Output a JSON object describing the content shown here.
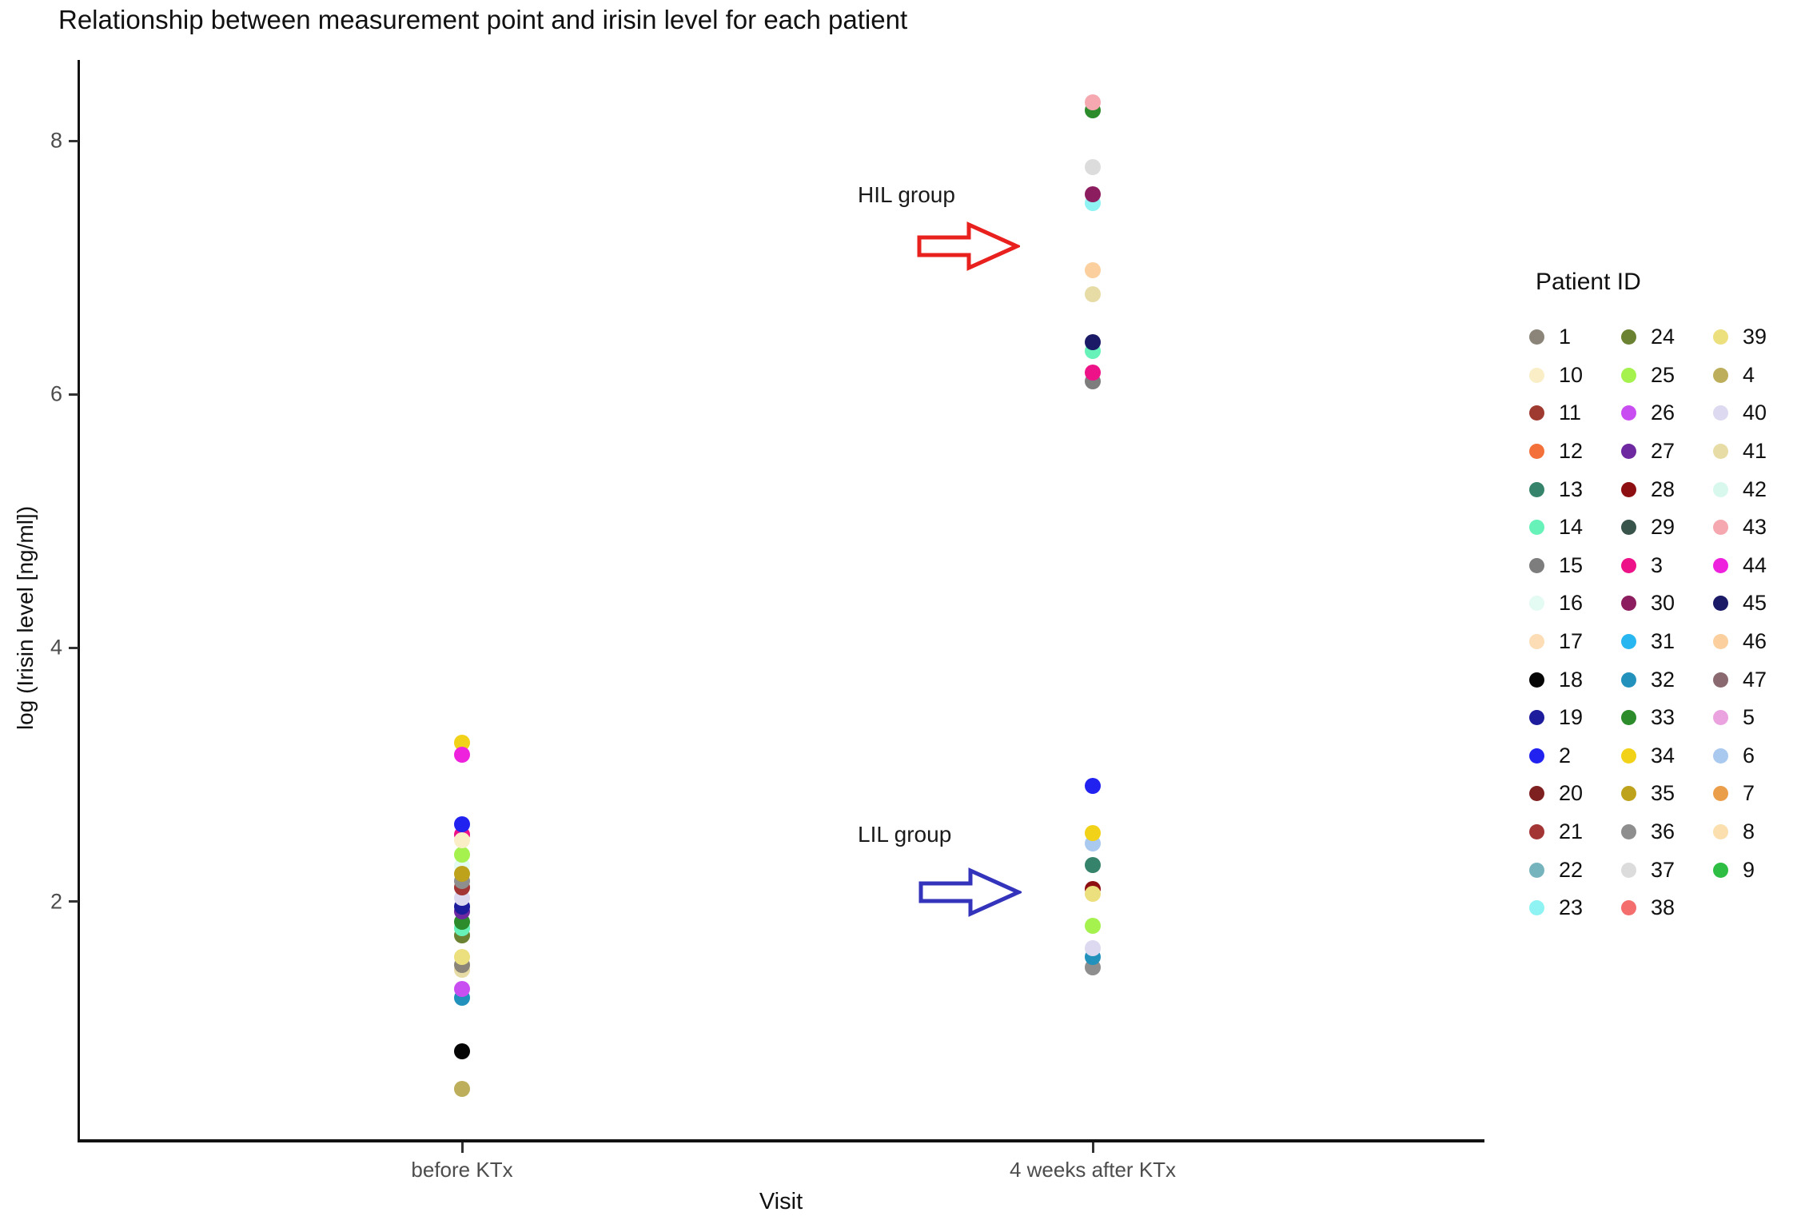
{
  "chart_data": {
    "type": "scatter",
    "title": "Relationship between measurement point and irisin level for each patient",
    "xlabel": "Visit",
    "ylabel": "log (Irisin level [ng/ml])",
    "x_categories": [
      "before KTx",
      "4 weeks after KTx"
    ],
    "y_ticks": [
      2,
      4,
      6,
      8
    ],
    "ylim": [
      0.1,
      8.6
    ],
    "grid": false,
    "legend_position": "right",
    "annotations": [
      {
        "label": "HIL group",
        "arrow_color": "#e8201e",
        "points_to": "high irisin level cluster at 4 weeks after KTx"
      },
      {
        "label": "LIL group",
        "arrow_color": "#3333bb",
        "points_to": "low irisin level cluster at 4 weeks after KTx"
      }
    ],
    "series": [
      {
        "name": "before KTx",
        "points": [
          {
            "id": "4",
            "v": 0.52
          },
          {
            "id": "18",
            "v": 0.82
          },
          {
            "id": "32",
            "v": 1.24
          },
          {
            "id": "26",
            "v": 1.31
          },
          {
            "id": "41",
            "v": 1.46
          },
          {
            "id": "1",
            "v": 1.5
          },
          {
            "id": "39",
            "v": 1.56
          },
          {
            "id": "24",
            "v": 1.73
          },
          {
            "id": "14",
            "v": 1.79
          },
          {
            "id": "33",
            "v": 1.84
          },
          {
            "id": "27",
            "v": 1.92
          },
          {
            "id": "19",
            "v": 1.96
          },
          {
            "id": "40",
            "v": 2.03
          },
          {
            "id": "21",
            "v": 2.11
          },
          {
            "id": "36",
            "v": 2.16
          },
          {
            "id": "16",
            "v": 2.28
          },
          {
            "id": "35",
            "v": 2.22
          },
          {
            "id": "25",
            "v": 2.37
          },
          {
            "id": "3",
            "v": 2.53
          },
          {
            "id": "10",
            "v": 2.48
          },
          {
            "id": "2",
            "v": 2.61
          },
          {
            "id": "34",
            "v": 3.25
          },
          {
            "id": "44",
            "v": 3.16
          }
        ]
      },
      {
        "name": "4 weeks after KTx",
        "points": [
          {
            "id": "36",
            "v": 1.48
          },
          {
            "id": "32",
            "v": 1.56
          },
          {
            "id": "40",
            "v": 1.63
          },
          {
            "id": "25",
            "v": 1.81
          },
          {
            "id": "28",
            "v": 2.1
          },
          {
            "id": "39",
            "v": 2.06
          },
          {
            "id": "13",
            "v": 2.29
          },
          {
            "id": "6",
            "v": 2.46
          },
          {
            "id": "34",
            "v": 2.54
          },
          {
            "id": "2",
            "v": 2.91
          },
          {
            "id": "15",
            "v": 6.1
          },
          {
            "id": "3",
            "v": 6.17
          },
          {
            "id": "14",
            "v": 6.34
          },
          {
            "id": "45",
            "v": 6.41
          },
          {
            "id": "41",
            "v": 6.79
          },
          {
            "id": "46",
            "v": 6.98
          },
          {
            "id": "23",
            "v": 7.51
          },
          {
            "id": "30",
            "v": 7.58
          },
          {
            "id": "37",
            "v": 7.79
          },
          {
            "id": "33",
            "v": 8.24
          },
          {
            "id": "43",
            "v": 8.3
          }
        ]
      }
    ]
  },
  "legend": {
    "title": "Patient ID",
    "order": [
      "1",
      "10",
      "11",
      "12",
      "13",
      "14",
      "15",
      "16",
      "17",
      "18",
      "19",
      "2",
      "20",
      "21",
      "22",
      "23",
      "24",
      "25",
      "26",
      "27",
      "28",
      "29",
      "3",
      "30",
      "31",
      "32",
      "33",
      "34",
      "35",
      "36",
      "37",
      "38",
      "39",
      "4",
      "40",
      "41",
      "42",
      "43",
      "44",
      "45",
      "46",
      "47",
      "5",
      "6",
      "7",
      "8",
      "9"
    ]
  },
  "palette": {
    "1": "#8a8578",
    "2": "#2222f0",
    "3": "#ee1289",
    "4": "#bcae5a",
    "5": "#eba3e0",
    "6": "#a9c9ee",
    "7": "#eb9e4a",
    "8": "#fbdfae",
    "9": "#2ebe44",
    "10": "#faeec7",
    "11": "#9e3a30",
    "12": "#f4703a",
    "13": "#35836a",
    "14": "#66f2b8",
    "15": "#7d7d7d",
    "16": "#e4fbf3",
    "17": "#fcddb5",
    "18": "#050505",
    "19": "#1c1c9c",
    "20": "#7e2020",
    "21": "#a33535",
    "22": "#76b4bd",
    "23": "#8ff3f3",
    "24": "#6b8232",
    "25": "#a5f24e",
    "26": "#c94ef2",
    "27": "#6e28a0",
    "28": "#8e0f12",
    "29": "#39544a",
    "30": "#8c1d5e",
    "31": "#28b6f0",
    "32": "#2292bc",
    "33": "#2c8c2c",
    "34": "#f2d218",
    "35": "#bfa21c",
    "36": "#8e8e8e",
    "37": "#dcdcdc",
    "38": "#f56e6e",
    "39": "#ecdf7e",
    "40": "#dcd9f0",
    "41": "#e8dca6",
    "42": "#d8f8ee",
    "43": "#f5a8b0",
    "44": "#ee22dd",
    "45": "#1a1a66",
    "46": "#fbcf9e",
    "47": "#8a6a70"
  }
}
